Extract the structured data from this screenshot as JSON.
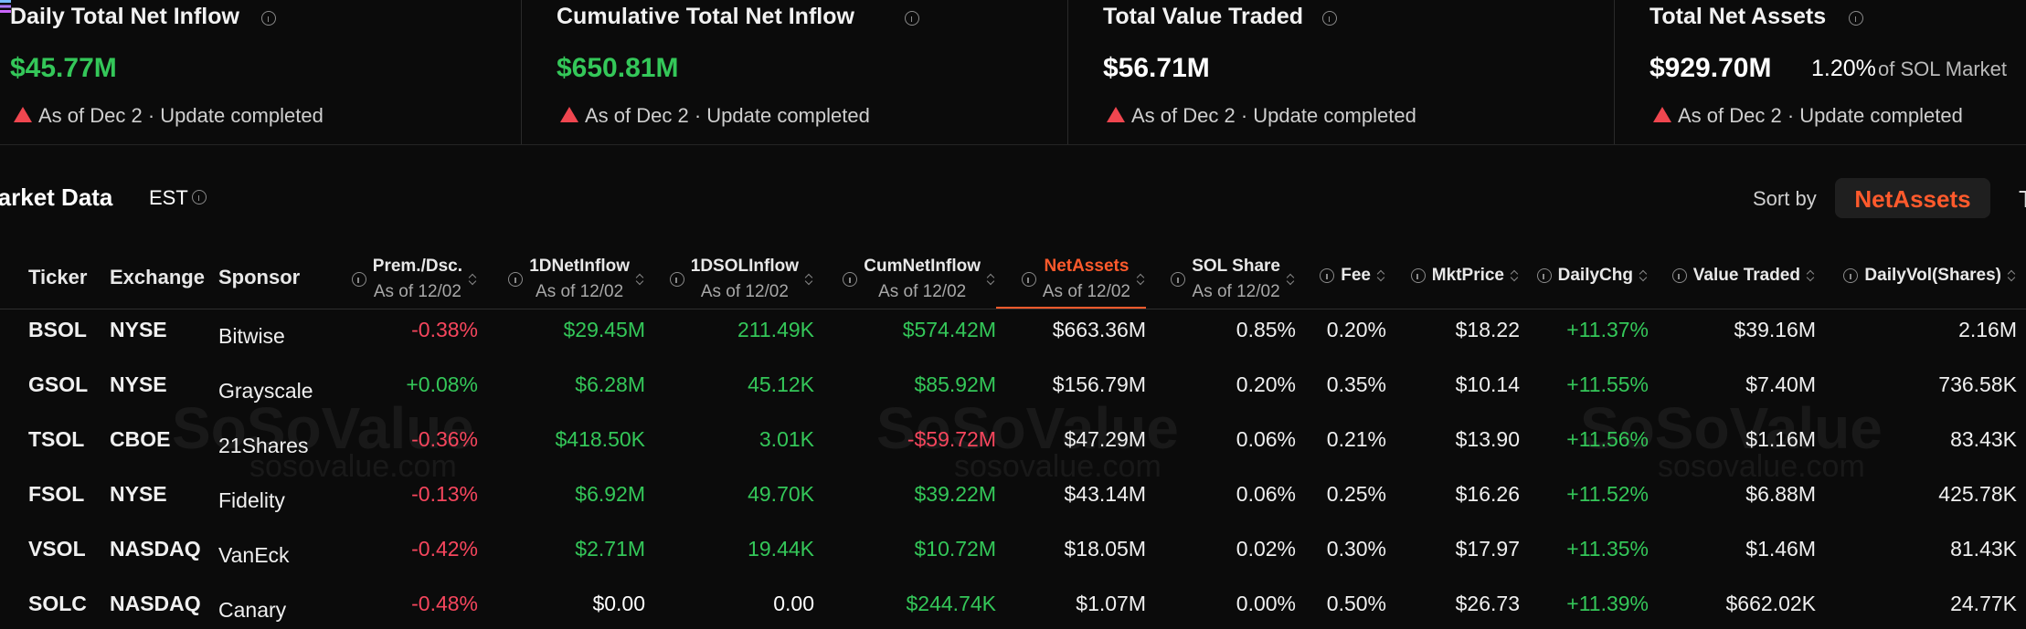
{
  "cards": [
    {
      "title": "Daily Total Net Inflow",
      "value": "$45.77M",
      "note": "As of Dec 2 · Update completed"
    },
    {
      "title": "Cumulative Total Net Inflow",
      "value": "$650.81M",
      "note": "As of Dec 2 · Update completed"
    },
    {
      "title": "Total Value Traded",
      "value": "$56.71M",
      "note": "As of Dec 2 · Update completed"
    },
    {
      "title": "Total Net Assets",
      "value": "$929.70M",
      "share": "1.20%",
      "share_suffix": "of SOL Market",
      "note": "As of Dec 2 · Update completed"
    }
  ],
  "market": {
    "title": "Market Data",
    "timezone": "EST",
    "sort_label": "Sort by",
    "sort_options": [
      "NetAssets",
      "T"
    ]
  },
  "table": {
    "columns": [
      {
        "label": "Ticker"
      },
      {
        "label": "Exchange"
      },
      {
        "label": "Sponsor"
      },
      {
        "label": "Prem./Dsc.",
        "sub": "As of 12/02"
      },
      {
        "label": "1DNetInflow",
        "sub": "As of 12/02"
      },
      {
        "label": "1DSOLInflow",
        "sub": "As of 12/02"
      },
      {
        "label": "CumNetInflow",
        "sub": "As of 12/02"
      },
      {
        "label": "NetAssets",
        "sub": "As of 12/02"
      },
      {
        "label": "SOL Share",
        "sub": "As of 12/02"
      },
      {
        "label": "Fee"
      },
      {
        "label": "MktPrice"
      },
      {
        "label": "DailyChg"
      },
      {
        "label": "Value Traded"
      },
      {
        "label": "DailyVol(Shares)"
      }
    ],
    "rows": [
      [
        "BSOL",
        "NYSE",
        "Bitwise",
        "-0.38%",
        "$29.45M",
        "211.49K",
        "$574.42M",
        "$663.36M",
        "0.85%",
        "0.20%",
        "$18.22",
        "+11.37%",
        "$39.16M",
        "2.16M"
      ],
      [
        "GSOL",
        "NYSE",
        "Grayscale",
        "+0.08%",
        "$6.28M",
        "45.12K",
        "$85.92M",
        "$156.79M",
        "0.20%",
        "0.35%",
        "$10.14",
        "+11.55%",
        "$7.40M",
        "736.58K"
      ],
      [
        "TSOL",
        "CBOE",
        "21Shares",
        "-0.36%",
        "$418.50K",
        "3.01K",
        "-$59.72M",
        "$47.29M",
        "0.06%",
        "0.21%",
        "$13.90",
        "+11.56%",
        "$1.16M",
        "83.43K"
      ],
      [
        "FSOL",
        "NYSE",
        "Fidelity",
        "-0.13%",
        "$6.92M",
        "49.70K",
        "$39.22M",
        "$43.14M",
        "0.06%",
        "0.25%",
        "$16.26",
        "+11.52%",
        "$6.88M",
        "425.78K"
      ],
      [
        "VSOL",
        "NASDAQ",
        "VanEck",
        "-0.42%",
        "$2.71M",
        "19.44K",
        "$10.72M",
        "$18.05M",
        "0.02%",
        "0.30%",
        "$17.97",
        "+11.35%",
        "$1.46M",
        "81.43K"
      ],
      [
        "SOLC",
        "NASDAQ",
        "Canary",
        "-0.48%",
        "$0.00",
        "0.00",
        "$244.74K",
        "$1.07M",
        "0.00%",
        "0.50%",
        "$26.73",
        "+11.39%",
        "$662.02K",
        "24.77K"
      ]
    ]
  },
  "watermark": {
    "brand": "SoSoValue",
    "site": "sosovalue.com"
  }
}
